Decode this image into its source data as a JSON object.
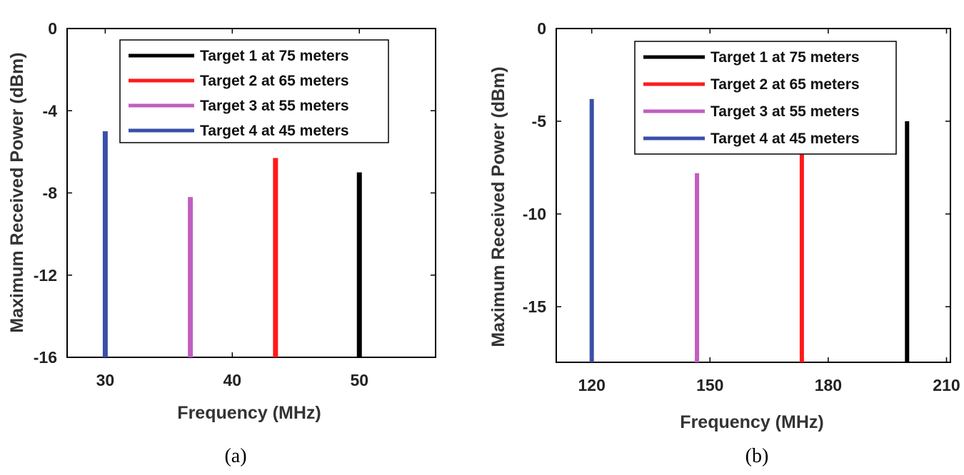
{
  "chart_data": [
    {
      "type": "bar",
      "caption": "(a)",
      "xlabel": "Frequency (MHz)",
      "ylabel": "Maximum Received Power (dBm)",
      "xlim": [
        27,
        56
      ],
      "ylim": [
        -16,
        0
      ],
      "xticks": [
        30,
        40,
        50
      ],
      "yticks": [
        0,
        -4,
        -8,
        -12,
        -16
      ],
      "grid": false,
      "legend_position": "top-right",
      "series": [
        {
          "name": "Target 1 at 75 meters",
          "color": "#000000",
          "x": 50.0,
          "value": -7.0
        },
        {
          "name": "Target 2 at 65 meters",
          "color": "#ff1a1a",
          "x": 43.4,
          "value": -6.3
        },
        {
          "name": "Target 3 at 55 meters",
          "color": "#c05fc0",
          "x": 36.7,
          "value": -8.2
        },
        {
          "name": "Target 4 at 45 meters",
          "color": "#3a4fa8",
          "x": 30.0,
          "value": -5.0
        }
      ]
    },
    {
      "type": "bar",
      "caption": "(b)",
      "xlabel": "Frequency (MHz)",
      "ylabel": "Maximum Received Power (dBm)",
      "xlim": [
        111,
        211
      ],
      "ylim": [
        -18,
        0
      ],
      "xticks": [
        120,
        150,
        180,
        210
      ],
      "yticks": [
        0,
        -5,
        -10,
        -15
      ],
      "grid": false,
      "legend_position": "top-right",
      "series": [
        {
          "name": "Target 1 at 75 meters",
          "color": "#000000",
          "x": 200.0,
          "value": -5.0
        },
        {
          "name": "Target 2 at 65 meters",
          "color": "#ff1a1a",
          "x": 173.3,
          "value": -6.8
        },
        {
          "name": "Target 3 at 55 meters",
          "color": "#c05fc0",
          "x": 146.7,
          "value": -7.8
        },
        {
          "name": "Target 4 at 45 meters",
          "color": "#3a4fa8",
          "x": 120.0,
          "value": -3.8
        }
      ]
    }
  ]
}
